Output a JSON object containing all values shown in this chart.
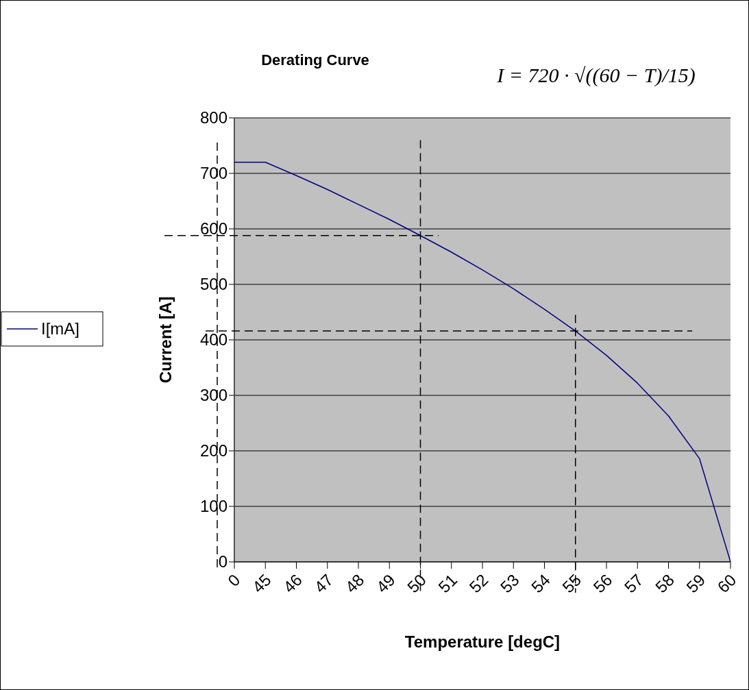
{
  "chart_data": {
    "type": "line",
    "title": "Derating Curve",
    "xlabel": "Temperature [degC]",
    "ylabel": "Current [A]",
    "categories": [
      "0",
      "45",
      "46",
      "47",
      "48",
      "49",
      "50",
      "51",
      "52",
      "53",
      "54",
      "55",
      "56",
      "57",
      "58",
      "59",
      "60"
    ],
    "series": [
      {
        "name": "I[mA]",
        "color": "#000080",
        "values": [
          720,
          720,
          696,
          671,
          644,
          617,
          588,
          558,
          526,
          492,
          455,
          416,
          372,
          322,
          263,
          186,
          0
        ]
      }
    ],
    "ylim": [
      0,
      800
    ],
    "yticks": [
      0,
      100,
      200,
      300,
      400,
      500,
      600,
      700,
      800
    ],
    "grid": "y",
    "legend": "left",
    "marker": "none",
    "line_style": "solid",
    "ref_lines": [
      {
        "axis": "x",
        "value": "50",
        "line_style": "dashed",
        "color": "#000000"
      },
      {
        "axis": "x",
        "value": "55",
        "line_style": "dashed",
        "color": "#000000"
      },
      {
        "axis": "y",
        "value": 588,
        "line_style": "dashed",
        "color": "#000000"
      },
      {
        "axis": "y",
        "value": 416,
        "line_style": "dashed",
        "color": "#000000"
      }
    ],
    "annotations": [
      "I = 720 · √((60 − T)/15)"
    ]
  }
}
